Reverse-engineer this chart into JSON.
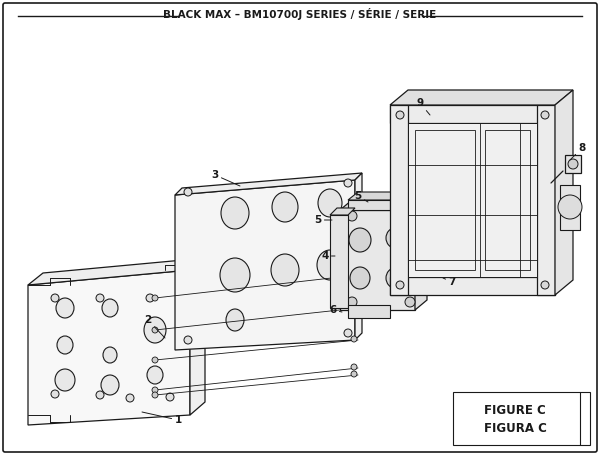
{
  "title": "BLACK MAX – BM10700J SERIES / SÉRIE / SERIE",
  "figure_label": "FIGURE C",
  "figura_label": "FIGURA C",
  "bg_color": "#ffffff",
  "lc": "#1a1a1a",
  "lw": 0.7,
  "title_fontsize": 7.5,
  "label_fontsize": 7.5
}
